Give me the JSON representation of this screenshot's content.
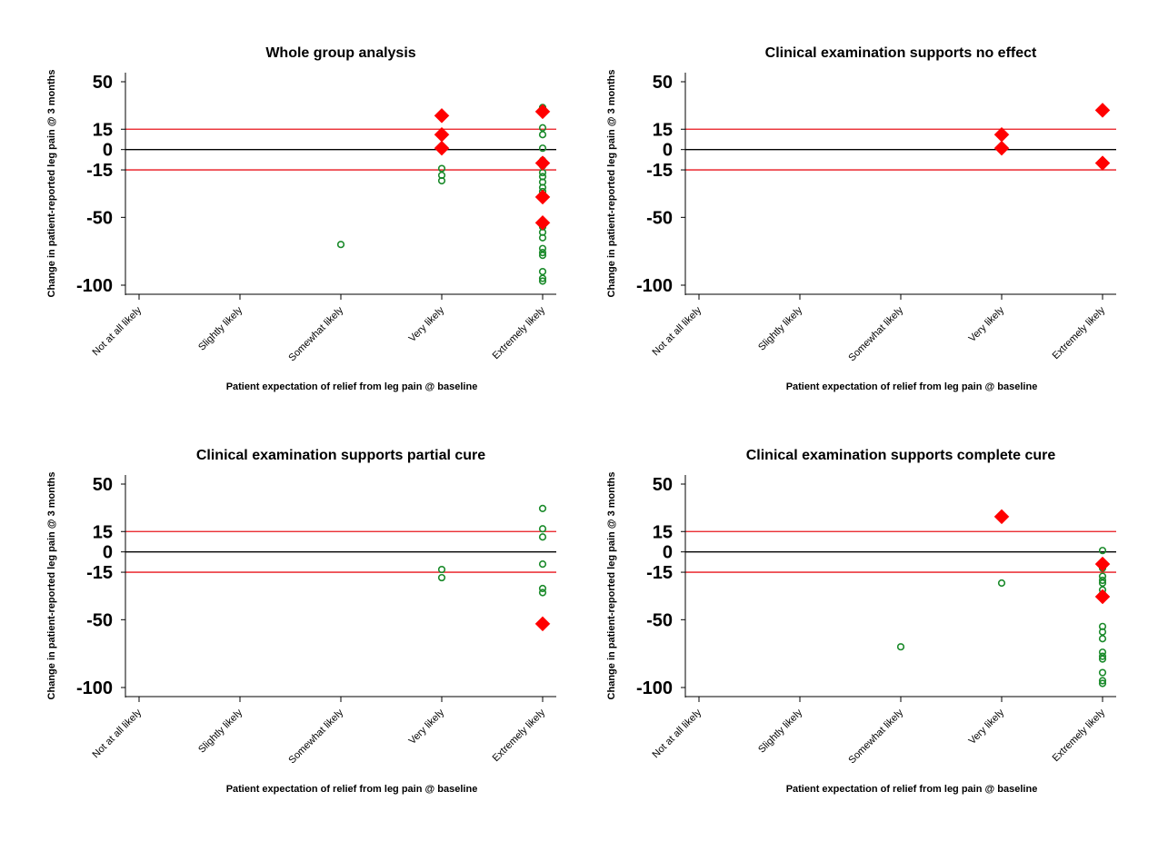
{
  "chart_data": {
    "type": "scatter",
    "layout": "2x2",
    "shared": {
      "ylabel": "Change in patient-reported leg pain @ 3 months",
      "xlabel": "Patient expectation of relief from leg pain @ baseline",
      "categories": [
        "Not at all likely",
        "Slightly likely",
        "Somewhat likely",
        "Very likely",
        "Extremely likely"
      ],
      "yticks": [
        50,
        15,
        0,
        -15,
        -50,
        -100
      ],
      "ylim": [
        -110,
        55
      ],
      "reference_lines": [
        {
          "y": 15,
          "color": "#e8141b"
        },
        {
          "y": 0,
          "color": "#000000"
        },
        {
          "y": -15,
          "color": "#e8141b"
        }
      ],
      "colors": {
        "hollow": "#1a8a2a",
        "diamond": "#ff0000"
      }
    },
    "panels": [
      {
        "title": "Whole group analysis",
        "series": [
          {
            "marker": "hollow-circle",
            "points": [
              [
                2,
                -70
              ],
              [
                3,
                -14
              ],
              [
                3,
                -19
              ],
              [
                3,
                -23
              ],
              [
                4,
                31
              ],
              [
                4,
                16
              ],
              [
                4,
                11
              ],
              [
                4,
                1
              ],
              [
                4,
                -8
              ],
              [
                4,
                -12
              ],
              [
                4,
                -17
              ],
              [
                4,
                -20
              ],
              [
                4,
                -24
              ],
              [
                4,
                -28
              ],
              [
                4,
                -31
              ],
              [
                4,
                -53
              ],
              [
                4,
                -57
              ],
              [
                4,
                -61
              ],
              [
                4,
                -65
              ],
              [
                4,
                -73
              ],
              [
                4,
                -76
              ],
              [
                4,
                -78
              ],
              [
                4,
                -90
              ],
              [
                4,
                -95
              ],
              [
                4,
                -97
              ]
            ]
          },
          {
            "marker": "diamond",
            "points": [
              [
                3,
                25
              ],
              [
                3,
                11
              ],
              [
                3,
                1
              ],
              [
                4,
                28
              ],
              [
                4,
                -10
              ],
              [
                4,
                -35
              ],
              [
                4,
                -54
              ]
            ]
          }
        ]
      },
      {
        "title": "Clinical examination supports no effect",
        "series": [
          {
            "marker": "hollow-circle",
            "points": []
          },
          {
            "marker": "diamond",
            "points": [
              [
                3,
                11
              ],
              [
                3,
                1
              ],
              [
                4,
                29
              ],
              [
                4,
                -10
              ]
            ]
          }
        ]
      },
      {
        "title": "Clinical examination supports partial cure",
        "series": [
          {
            "marker": "hollow-circle",
            "points": [
              [
                3,
                -13
              ],
              [
                3,
                -19
              ],
              [
                4,
                32
              ],
              [
                4,
                17
              ],
              [
                4,
                11
              ],
              [
                4,
                -9
              ],
              [
                4,
                -27
              ],
              [
                4,
                -30
              ],
              [
                4,
                -53
              ]
            ]
          },
          {
            "marker": "diamond",
            "points": [
              [
                4,
                -53
              ]
            ]
          }
        ]
      },
      {
        "title": "Clinical examination supports complete cure",
        "series": [
          {
            "marker": "hollow-circle",
            "points": [
              [
                2,
                -70
              ],
              [
                3,
                -23
              ],
              [
                4,
                1
              ],
              [
                4,
                -12
              ],
              [
                4,
                -18
              ],
              [
                4,
                -21
              ],
              [
                4,
                -23
              ],
              [
                4,
                -28
              ],
              [
                4,
                -31
              ],
              [
                4,
                -55
              ],
              [
                4,
                -59
              ],
              [
                4,
                -64
              ],
              [
                4,
                -74
              ],
              [
                4,
                -77
              ],
              [
                4,
                -79
              ],
              [
                4,
                -89
              ],
              [
                4,
                -95
              ],
              [
                4,
                -97
              ]
            ]
          },
          {
            "marker": "diamond",
            "points": [
              [
                3,
                26
              ],
              [
                4,
                -9
              ],
              [
                4,
                -33
              ]
            ]
          }
        ]
      }
    ]
  }
}
